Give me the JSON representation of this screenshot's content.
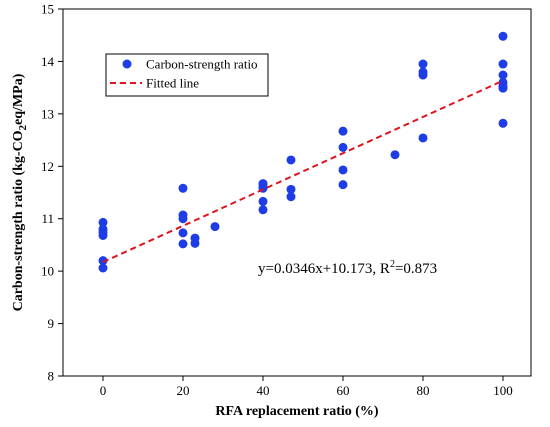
{
  "chart_data": {
    "type": "scatter",
    "xlabel": "RFA replacement ratio (%)",
    "ylabel_parts": {
      "pre": "Carbon-strength ratio (kg-CO",
      "sub": "2",
      "post": "eq/MPa)"
    },
    "xlim": [
      -10,
      107
    ],
    "ylim": [
      8,
      15
    ],
    "xticks": [
      0,
      20,
      40,
      60,
      80,
      100
    ],
    "yticks": [
      8,
      9,
      10,
      11,
      12,
      13,
      14,
      15
    ],
    "grid": false,
    "legend_position": "top-left",
    "series": [
      {
        "name": "Carbon-strength ratio",
        "kind": "scatter",
        "color": "#1f3de6",
        "points": [
          [
            0,
            10.93
          ],
          [
            0,
            10.8
          ],
          [
            0,
            10.74
          ],
          [
            0,
            10.68
          ],
          [
            0,
            10.2
          ],
          [
            0,
            10.06
          ],
          [
            20,
            11.58
          ],
          [
            20,
            11.07
          ],
          [
            20,
            11.0
          ],
          [
            20,
            10.73
          ],
          [
            20,
            10.52
          ],
          [
            23,
            10.63
          ],
          [
            23,
            10.53
          ],
          [
            28,
            10.85
          ],
          [
            40,
            11.67
          ],
          [
            40,
            11.62
          ],
          [
            40,
            11.58
          ],
          [
            40,
            11.33
          ],
          [
            40,
            11.17
          ],
          [
            47,
            12.12
          ],
          [
            47,
            11.56
          ],
          [
            47,
            11.42
          ],
          [
            60,
            12.67
          ],
          [
            60,
            12.36
          ],
          [
            60,
            11.93
          ],
          [
            60,
            11.65
          ],
          [
            73,
            12.22
          ],
          [
            80,
            13.95
          ],
          [
            80,
            13.8
          ],
          [
            80,
            13.74
          ],
          [
            80,
            12.54
          ],
          [
            100,
            14.48
          ],
          [
            100,
            13.95
          ],
          [
            100,
            13.74
          ],
          [
            100,
            13.6
          ],
          [
            100,
            13.53
          ],
          [
            100,
            13.49
          ],
          [
            100,
            12.82
          ]
        ]
      },
      {
        "name": "Fitted line",
        "kind": "line",
        "color": "#e0141e",
        "style": "dashed",
        "slope": 0.0346,
        "intercept": 10.173,
        "x_range": [
          0,
          100
        ]
      }
    ],
    "annotation": {
      "pre": "y=0.0346x+10.173,  R",
      "sup": "2",
      "post": "=0.873"
    }
  }
}
